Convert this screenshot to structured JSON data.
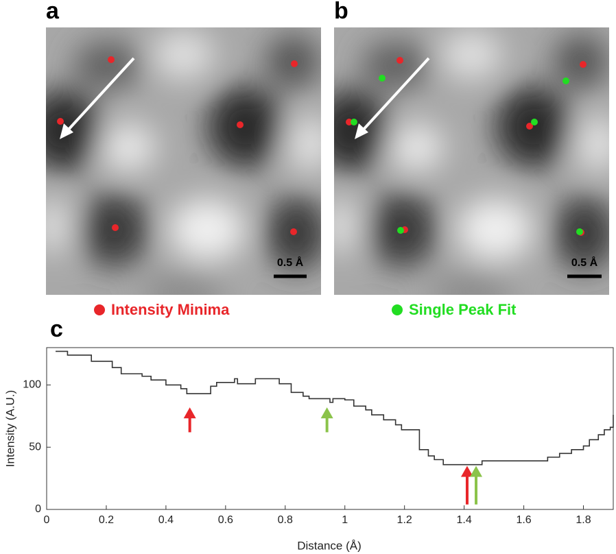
{
  "panels": {
    "a": {
      "label": "a",
      "legend": "Intensity Minima",
      "scale_bar": "0.5 Å"
    },
    "b": {
      "label": "b",
      "legend": "Single Peak Fit",
      "scale_bar": "0.5 Å"
    }
  },
  "chart_data": {
    "type": "line",
    "step": true,
    "label": "c",
    "x_label": "Distance (Å)",
    "y_label": "Intensity (A.U.)",
    "xlim": [
      0,
      1.9
    ],
    "ylim": [
      0,
      130
    ],
    "xticks": [
      0,
      0.2,
      0.4,
      0.6,
      0.8,
      1,
      1.2,
      1.4,
      1.6,
      1.8
    ],
    "yticks": [
      0,
      50,
      100
    ],
    "series": [
      {
        "color": "#333333",
        "x": [
          0.03,
          0.07,
          0.15,
          0.22,
          0.25,
          0.32,
          0.35,
          0.4,
          0.45,
          0.47,
          0.52,
          0.55,
          0.57,
          0.62,
          0.63,
          0.64,
          0.7,
          0.76,
          0.78,
          0.82,
          0.86,
          0.88,
          0.94,
          0.95,
          0.96,
          1.0,
          1.03,
          1.07,
          1.09,
          1.13,
          1.17,
          1.19,
          1.25,
          1.28,
          1.3,
          1.33,
          1.45,
          1.46,
          1.65,
          1.68,
          1.72,
          1.76,
          1.8,
          1.82,
          1.85,
          1.87,
          1.89,
          1.9
        ],
        "values": [
          127,
          124,
          119,
          114,
          109,
          107,
          104,
          100,
          97,
          93,
          93,
          99,
          102,
          102,
          105,
          101,
          105,
          105,
          101,
          94,
          91,
          89,
          89,
          86,
          89,
          88,
          83,
          80,
          76,
          72,
          68,
          64,
          48,
          43,
          40,
          36,
          36,
          39,
          39,
          42,
          45,
          48,
          51,
          56,
          60,
          64,
          66,
          76
        ]
      }
    ],
    "arrows": [
      {
        "x": 0.48,
        "tip": 82,
        "tail": 62,
        "color": "#e8262a"
      },
      {
        "x": 0.94,
        "tip": 82,
        "tail": 62,
        "color": "#8bc34a"
      },
      {
        "x": 1.41,
        "tip": 35,
        "tail": 4,
        "color": "#e8262a"
      },
      {
        "x": 1.44,
        "tip": 35,
        "tail": 4,
        "color": "#8bc34a"
      }
    ]
  }
}
